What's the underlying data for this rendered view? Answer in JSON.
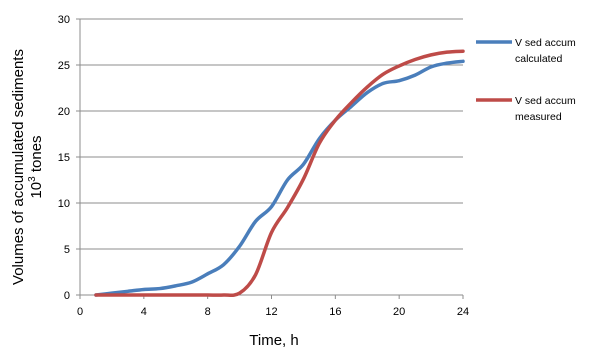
{
  "chart_data": {
    "type": "line",
    "xlabel": "Time, h",
    "ylabel_line1": "Volumes of accumulated sediments",
    "ylabel_line2_base": "10",
    "ylabel_line2_sup": "3",
    "ylabel_line2_rest": " tones",
    "xlim": [
      0,
      24
    ],
    "ylim": [
      0,
      30
    ],
    "xticks": [
      0,
      4,
      8,
      12,
      16,
      20,
      24
    ],
    "yticks": [
      0,
      5,
      10,
      15,
      20,
      25,
      30
    ],
    "grid": "horizontal",
    "legend_position": "right",
    "series": [
      {
        "name_line1": "V sed accum",
        "name_line2": "calculated",
        "color": "#4a7ebb",
        "x": [
          1,
          2,
          3,
          4,
          5,
          6,
          7,
          8,
          9,
          10,
          11,
          12,
          13,
          14,
          15,
          16,
          17,
          18,
          19,
          20,
          21,
          22,
          23,
          24
        ],
        "y": [
          0,
          0.2,
          0.4,
          0.6,
          0.7,
          1.0,
          1.4,
          2.3,
          3.3,
          5.3,
          8.0,
          9.6,
          12.5,
          14.2,
          17.0,
          19.0,
          20.5,
          22.0,
          23.0,
          23.3,
          23.9,
          24.8,
          25.2,
          25.4
        ]
      },
      {
        "name_line1": "V sed accum",
        "name_line2": "measured",
        "color": "#be4b48",
        "x": [
          1,
          2,
          3,
          4,
          5,
          6,
          7,
          8,
          9,
          10,
          11,
          12,
          13,
          14,
          15,
          16,
          17,
          18,
          19,
          20,
          21,
          22,
          23,
          24
        ],
        "y": [
          0,
          0,
          0,
          0,
          0,
          0,
          0,
          0,
          0,
          0.2,
          2.2,
          6.8,
          9.5,
          12.6,
          16.5,
          19.0,
          20.9,
          22.6,
          24.0,
          24.9,
          25.6,
          26.1,
          26.4,
          26.5
        ]
      }
    ]
  }
}
